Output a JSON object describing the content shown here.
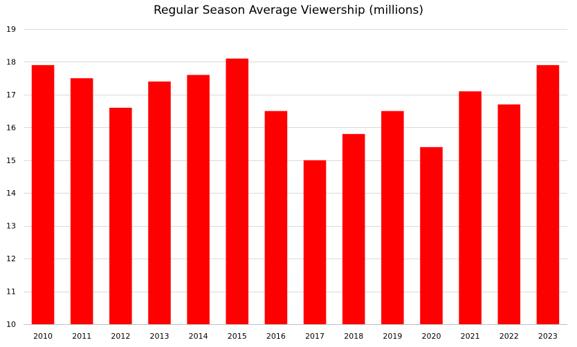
{
  "chart_data": {
    "type": "bar",
    "title": "Regular Season Average Viewership (millions)",
    "xlabel": "",
    "ylabel": "",
    "categories": [
      "2010",
      "2011",
      "2012",
      "2013",
      "2014",
      "2015",
      "2016",
      "2017",
      "2018",
      "2019",
      "2020",
      "2021",
      "2022",
      "2023"
    ],
    "series": [
      {
        "values": [
          17.9,
          17.5,
          16.6,
          17.4,
          17.6,
          18.1,
          16.5,
          15.0,
          15.8,
          16.5,
          15.4,
          17.1,
          16.7,
          17.9
        ]
      }
    ],
    "ylim": [
      10,
      19
    ],
    "yticks": [
      10,
      11,
      12,
      13,
      14,
      15,
      16,
      17,
      18,
      19
    ],
    "grid": true,
    "legend": "none",
    "colors": {
      "bar": "#ff0000",
      "grid": "#d9d9d9"
    }
  }
}
